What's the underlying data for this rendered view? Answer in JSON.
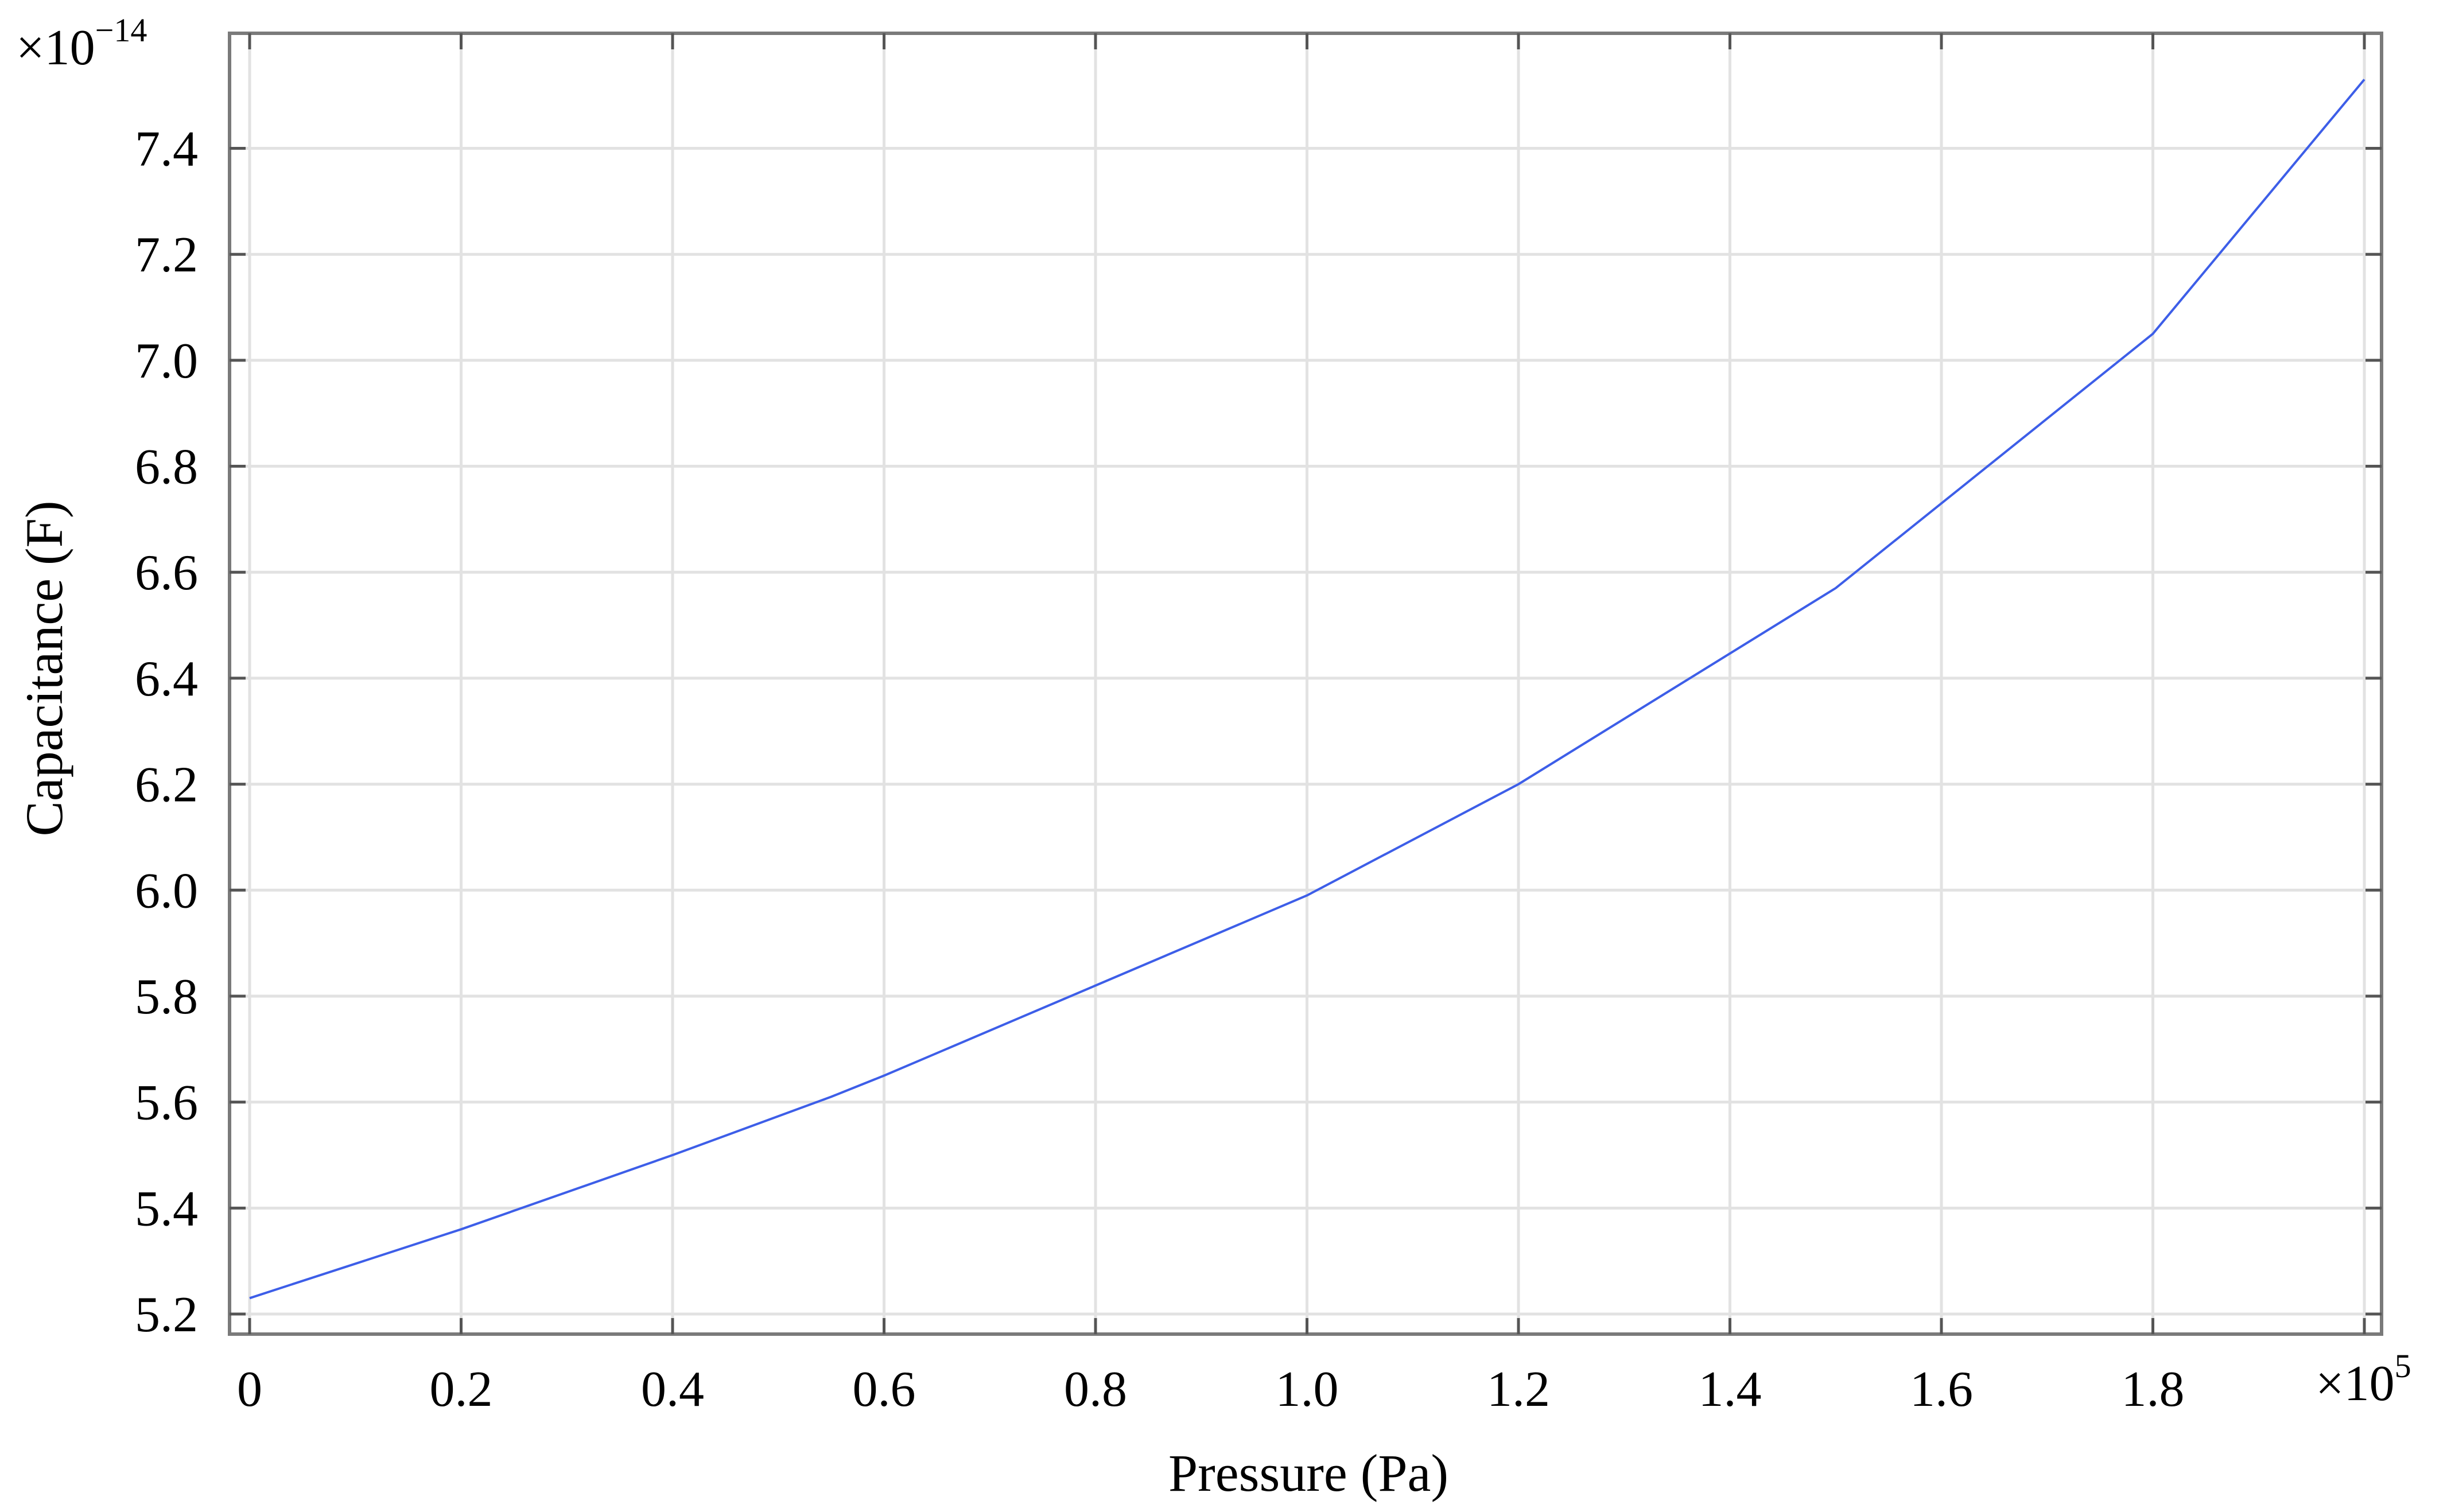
{
  "chart_data": {
    "type": "line",
    "title": "",
    "xlabel": "Pressure (Pa)",
    "ylabel": "Capacitance (F)",
    "x_multiplier_label": "×10",
    "x_multiplier_exp": "5",
    "y_multiplier_label": "×10",
    "y_multiplier_exp": "−14",
    "xlim": [
      0,
      2.0
    ],
    "ylim": [
      5.2,
      7.55
    ],
    "grid": true,
    "x_ticks": [
      0,
      0.2,
      0.4,
      0.6,
      0.8,
      1.0,
      1.2,
      1.4,
      1.6,
      1.8
    ],
    "x_tick_labels": [
      "0",
      "0.2",
      "0.4",
      "0.6",
      "0.8",
      "1.0",
      "1.2",
      "1.4",
      "1.6",
      "1.8"
    ],
    "y_ticks": [
      5.2,
      5.4,
      5.6,
      5.8,
      6.0,
      6.2,
      6.4,
      6.6,
      6.8,
      7.0,
      7.2,
      7.4
    ],
    "y_tick_labels": [
      "5.2",
      "5.4",
      "5.6",
      "5.8",
      "6.0",
      "6.2",
      "6.4",
      "6.6",
      "6.8",
      "7.0",
      "7.2",
      "7.4"
    ],
    "series": [
      {
        "color": "#3d5ee8",
        "x": [
          0,
          0.2,
          0.4,
          0.55,
          0.6,
          0.8,
          1.0,
          1.2,
          1.5,
          1.8,
          2.0
        ],
        "y": [
          5.23,
          5.36,
          5.5,
          5.61,
          5.65,
          5.82,
          5.99,
          6.2,
          6.57,
          7.05,
          7.53
        ]
      }
    ]
  }
}
